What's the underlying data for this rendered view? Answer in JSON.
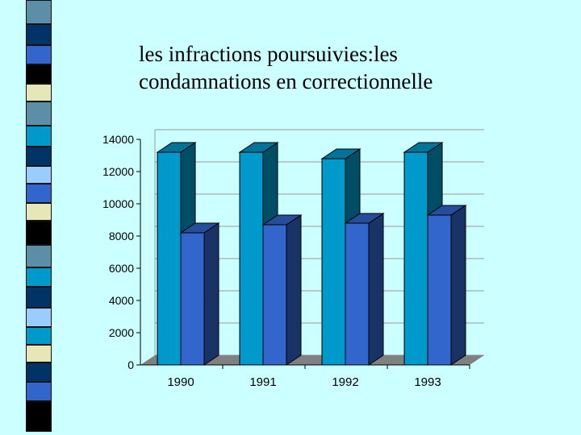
{
  "slide": {
    "title_line1": "les infractions poursuivies:les",
    "title_line2": "condamnations en correctionnelle"
  },
  "colors": {
    "background": "#ccffff",
    "series1_front": "#0099cc",
    "series1_side": "#004d66",
    "series1_top": "#007399",
    "series2_front": "#3366cc",
    "series2_side": "#1a3366",
    "series2_top": "#264d99",
    "floor": "#808080"
  },
  "chart_data": {
    "type": "bar",
    "title": "",
    "xlabel": "",
    "ylabel": "",
    "categories": [
      "1990",
      "1991",
      "1992",
      "1993"
    ],
    "series": [
      {
        "values": [
          13200,
          13200,
          12800,
          13200
        ]
      },
      {
        "values": [
          8200,
          8700,
          8800,
          9300
        ]
      }
    ],
    "ylim": [
      0,
      14000
    ],
    "yticks": [
      0,
      2000,
      4000,
      6000,
      8000,
      10000,
      12000,
      14000
    ],
    "grid": true,
    "legend": "none",
    "style": "3d-clustered-column"
  }
}
